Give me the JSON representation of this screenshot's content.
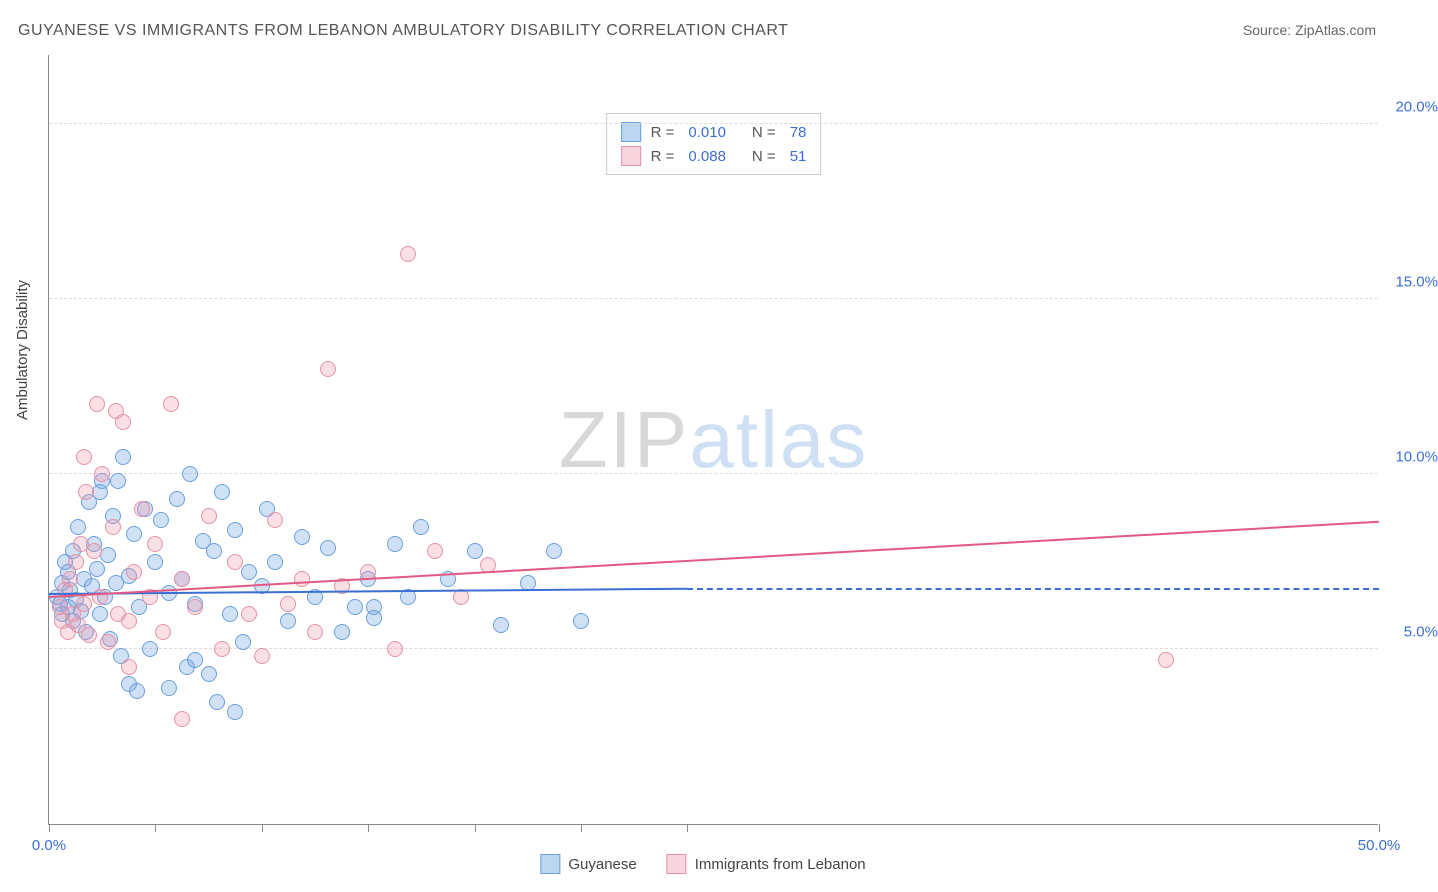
{
  "title": "GUYANESE VS IMMIGRANTS FROM LEBANON AMBULATORY DISABILITY CORRELATION CHART",
  "source": "Source: ZipAtlas.com",
  "watermark": {
    "zip": "ZIP",
    "atlas": "atlas"
  },
  "chart": {
    "type": "scatter",
    "background_color": "#ffffff",
    "grid_color": "#dddddd",
    "axis_color": "#888888",
    "yaxis_title": "Ambulatory Disability",
    "yaxis_title_color": "#444444",
    "label_fontsize": 15,
    "xlim": [
      0,
      50
    ],
    "ylim": [
      0,
      22
    ],
    "yticks": [
      {
        "value": 5.0,
        "label": "5.0%"
      },
      {
        "value": 10.0,
        "label": "10.0%"
      },
      {
        "value": 15.0,
        "label": "15.0%"
      },
      {
        "value": 20.0,
        "label": "20.0%"
      }
    ],
    "ytick_label_color": "#3b6fd6",
    "xtick_positions": [
      0,
      4,
      8,
      12,
      16,
      20,
      24,
      50
    ],
    "xtick_labels": [
      {
        "value": 0,
        "label": "0.0%",
        "color": "#3b6fd6"
      },
      {
        "value": 50,
        "label": "50.0%",
        "color": "#3b6fd6"
      }
    ],
    "marker_radius": 8,
    "marker_border_width": 1.2,
    "series": [
      {
        "name": "Guyanese",
        "fill_color": "rgba(120,170,230,0.35)",
        "stroke_color": "#6a9fde",
        "swatch_fill": "#bcd6f2",
        "swatch_border": "#6a9fde",
        "R": "0.010",
        "N": "78",
        "trend": {
          "color": "#3b6fd6",
          "y_start": 6.55,
          "y_end": 6.7,
          "x_start": 0,
          "x_end": 24,
          "dash_after": true,
          "dash_y": 6.7,
          "width": 2
        },
        "points": [
          [
            0.3,
            6.5
          ],
          [
            0.4,
            6.3
          ],
          [
            0.5,
            6.9
          ],
          [
            0.5,
            6.0
          ],
          [
            0.6,
            7.5
          ],
          [
            0.7,
            6.2
          ],
          [
            0.7,
            7.2
          ],
          [
            0.8,
            6.7
          ],
          [
            0.9,
            7.8
          ],
          [
            0.9,
            5.8
          ],
          [
            1.0,
            6.4
          ],
          [
            1.1,
            8.5
          ],
          [
            1.2,
            6.1
          ],
          [
            1.3,
            7.0
          ],
          [
            1.4,
            5.5
          ],
          [
            1.5,
            9.2
          ],
          [
            1.6,
            6.8
          ],
          [
            1.7,
            8.0
          ],
          [
            1.8,
            7.3
          ],
          [
            1.9,
            6.0
          ],
          [
            2.0,
            9.8
          ],
          [
            2.1,
            6.5
          ],
          [
            2.2,
            7.7
          ],
          [
            2.3,
            5.3
          ],
          [
            2.4,
            8.8
          ],
          [
            2.5,
            6.9
          ],
          [
            2.8,
            10.5
          ],
          [
            3.0,
            7.1
          ],
          [
            3.2,
            8.3
          ],
          [
            3.4,
            6.2
          ],
          [
            3.6,
            9.0
          ],
          [
            3.8,
            5.0
          ],
          [
            4.0,
            7.5
          ],
          [
            4.2,
            8.7
          ],
          [
            4.5,
            6.6
          ],
          [
            4.8,
            9.3
          ],
          [
            5.0,
            7.0
          ],
          [
            5.3,
            10.0
          ],
          [
            5.5,
            6.3
          ],
          [
            5.8,
            8.1
          ],
          [
            6.0,
            4.3
          ],
          [
            6.2,
            7.8
          ],
          [
            6.5,
            9.5
          ],
          [
            6.8,
            6.0
          ],
          [
            7.0,
            8.4
          ],
          [
            7.3,
            5.2
          ],
          [
            7.5,
            7.2
          ],
          [
            8.0,
            6.8
          ],
          [
            8.2,
            9.0
          ],
          [
            8.5,
            7.5
          ],
          [
            9.0,
            5.8
          ],
          [
            9.5,
            8.2
          ],
          [
            10.0,
            6.5
          ],
          [
            10.5,
            7.9
          ],
          [
            11.0,
            5.5
          ],
          [
            11.5,
            6.2
          ],
          [
            12.0,
            7.0
          ],
          [
            12.2,
            6.2
          ],
          [
            12.2,
            5.9
          ],
          [
            13.0,
            8.0
          ],
          [
            13.5,
            6.5
          ],
          [
            14.0,
            8.5
          ],
          [
            15.0,
            7.0
          ],
          [
            16.0,
            7.8
          ],
          [
            17.0,
            5.7
          ],
          [
            18.0,
            6.9
          ],
          [
            19.0,
            7.8
          ],
          [
            20.0,
            5.8
          ],
          [
            3.0,
            4.0
          ],
          [
            4.5,
            3.9
          ],
          [
            5.2,
            4.5
          ],
          [
            2.7,
            4.8
          ],
          [
            7.0,
            3.2
          ],
          [
            3.3,
            3.8
          ],
          [
            1.9,
            9.5
          ],
          [
            2.6,
            9.8
          ],
          [
            5.5,
            4.7
          ],
          [
            6.3,
            3.5
          ]
        ]
      },
      {
        "name": "Immigrants from Lebanon",
        "fill_color": "rgba(240,150,170,0.30)",
        "stroke_color": "#e592a6",
        "swatch_fill": "#f6d5dd",
        "swatch_border": "#e592a6",
        "R": "0.088",
        "N": "51",
        "trend": {
          "color": "#e05a82",
          "y_start": 6.45,
          "y_end": 8.6,
          "x_start": 0,
          "x_end": 50,
          "dash_after": false,
          "width": 2
        },
        "points": [
          [
            0.4,
            6.2
          ],
          [
            0.5,
            5.8
          ],
          [
            0.6,
            6.7
          ],
          [
            0.7,
            5.5
          ],
          [
            0.8,
            7.0
          ],
          [
            0.9,
            6.0
          ],
          [
            1.0,
            7.5
          ],
          [
            1.1,
            5.7
          ],
          [
            1.2,
            8.0
          ],
          [
            1.3,
            6.3
          ],
          [
            1.4,
            9.5
          ],
          [
            1.5,
            5.4
          ],
          [
            1.7,
            7.8
          ],
          [
            1.9,
            6.5
          ],
          [
            2.0,
            10.0
          ],
          [
            2.2,
            5.2
          ],
          [
            2.4,
            8.5
          ],
          [
            2.6,
            6.0
          ],
          [
            2.8,
            11.5
          ],
          [
            3.0,
            5.8
          ],
          [
            3.2,
            7.2
          ],
          [
            3.5,
            9.0
          ],
          [
            3.8,
            6.5
          ],
          [
            4.0,
            8.0
          ],
          [
            4.3,
            5.5
          ],
          [
            4.6,
            12.0
          ],
          [
            5.0,
            7.0
          ],
          [
            5.5,
            6.2
          ],
          [
            6.0,
            8.8
          ],
          [
            6.5,
            5.0
          ],
          [
            7.0,
            7.5
          ],
          [
            7.5,
            6.0
          ],
          [
            8.0,
            4.8
          ],
          [
            8.5,
            8.7
          ],
          [
            9.0,
            6.3
          ],
          [
            9.5,
            7.0
          ],
          [
            10.0,
            5.5
          ],
          [
            10.5,
            13.0
          ],
          [
            11.0,
            6.8
          ],
          [
            12.0,
            7.2
          ],
          [
            13.0,
            5.0
          ],
          [
            13.5,
            16.3
          ],
          [
            14.5,
            7.8
          ],
          [
            15.5,
            6.5
          ],
          [
            16.5,
            7.4
          ],
          [
            1.8,
            12.0
          ],
          [
            2.5,
            11.8
          ],
          [
            5.0,
            3.0
          ],
          [
            3.0,
            4.5
          ],
          [
            42.0,
            4.7
          ],
          [
            1.3,
            10.5
          ]
        ]
      }
    ]
  },
  "bottom_legend": [
    {
      "series_index": 0
    },
    {
      "series_index": 1
    }
  ]
}
